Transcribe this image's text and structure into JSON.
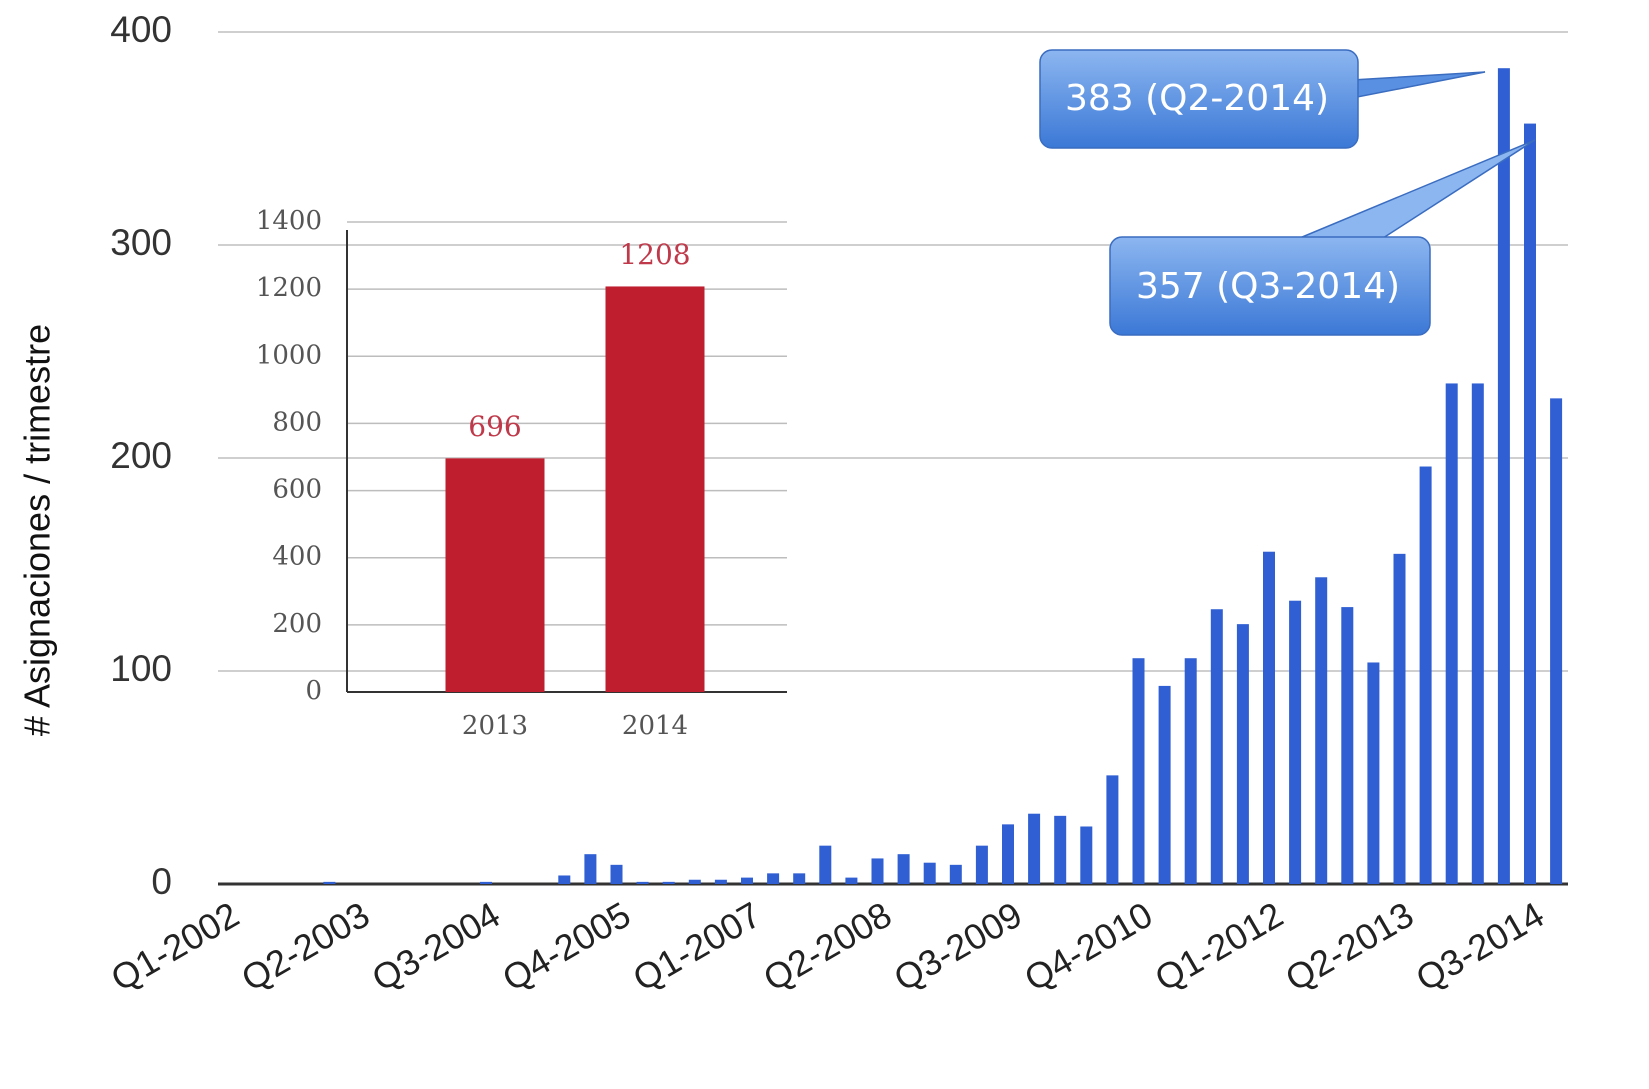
{
  "chart_data": [
    {
      "type": "bar",
      "y_label": "# Asignaciones / trimestre",
      "categories": [
        "Q1-2002",
        null,
        null,
        null,
        null,
        "Q2-2003",
        null,
        null,
        null,
        null,
        "Q3-2004",
        null,
        null,
        null,
        null,
        "Q4-2005",
        null,
        null,
        null,
        null,
        "Q1-2007",
        null,
        null,
        null,
        null,
        "Q2-2008",
        null,
        null,
        null,
        null,
        "Q3-2009",
        null,
        null,
        null,
        null,
        "Q4-2010",
        null,
        null,
        null,
        null,
        "Q1-2012",
        null,
        null,
        null,
        null,
        "Q2-2013",
        null,
        null,
        null,
        null,
        "Q3-2014",
        null
      ],
      "values": [
        0,
        0,
        0,
        0,
        1,
        0,
        0,
        0,
        0,
        0,
        1,
        0,
        0,
        4,
        14,
        9,
        1,
        1,
        2,
        2,
        3,
        5,
        5,
        18,
        3,
        12,
        14,
        10,
        9,
        18,
        28,
        33,
        32,
        27,
        51,
        106,
        93,
        106,
        129,
        122,
        156,
        133,
        144,
        130,
        104,
        155,
        196,
        235,
        235,
        383,
        357,
        228
      ],
      "color": "#2f5fd3",
      "ylim": [
        0,
        400
      ],
      "yticks": [
        0,
        100,
        200,
        300,
        400
      ],
      "grid": true,
      "annotations": [
        "383 (Q2-2014)",
        "357 (Q3-2014)"
      ]
    },
    {
      "type": "bar",
      "categories": [
        "2013",
        "2014"
      ],
      "values": [
        696,
        1208
      ],
      "color": "#be1e2d",
      "ylim": [
        0,
        1400
      ],
      "yticks": [
        0,
        200,
        400,
        600,
        800,
        1000,
        1200,
        1400
      ],
      "grid": true
    }
  ]
}
